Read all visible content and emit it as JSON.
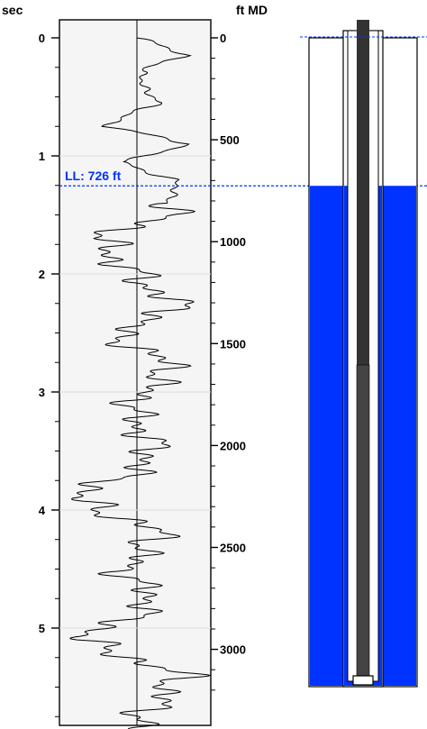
{
  "chart_data": {
    "type": "line",
    "left_axis_label": "sec",
    "right_axis_label": "ft MD",
    "left_ticks": [
      "0",
      "1",
      "2",
      "3",
      "4",
      "5"
    ],
    "left_tick_values": [
      0,
      1,
      2,
      3,
      4,
      5
    ],
    "right_ticks": [
      "0",
      "500",
      "1000",
      "1500",
      "2000",
      "2500",
      "3000"
    ],
    "right_tick_values": [
      0,
      500,
      1000,
      1500,
      2000,
      2500,
      3000
    ],
    "time_range_sec": [
      0,
      5.86
    ],
    "depth_range_ft": [
      0,
      3300
    ],
    "liquid_level_label": "LL: 726 ft",
    "liquid_level_ft": 726,
    "trace_time_sec": [
      0,
      0.15,
      0.28,
      0.55,
      0.75,
      0.9,
      1.05,
      1.2,
      1.5,
      1.7,
      1.9,
      2.1,
      2.3,
      2.5,
      2.8,
      3.0,
      3.2,
      3.4,
      3.6,
      3.9,
      4.2,
      4.5,
      4.8,
      5.1,
      5.4,
      5.7,
      5.86
    ],
    "trace_amplitude": [
      0,
      0.8,
      0,
      0.3,
      -0.5,
      0.9,
      -0.3,
      0.6,
      0.5,
      -0.6,
      -0.3,
      0.2,
      0.7,
      -0.4,
      0.6,
      0.1,
      -0.1,
      0.2,
      0.2,
      -1.0,
      0.4,
      -0.2,
      0.3,
      -0.9,
      0.7,
      0.2,
      0
    ],
    "colors": {
      "fluid": "#0033ff",
      "ll_line": "#0033ff",
      "tubing": "#333333",
      "trace": "#000000",
      "plot_bg": "#f5f5f5"
    }
  }
}
